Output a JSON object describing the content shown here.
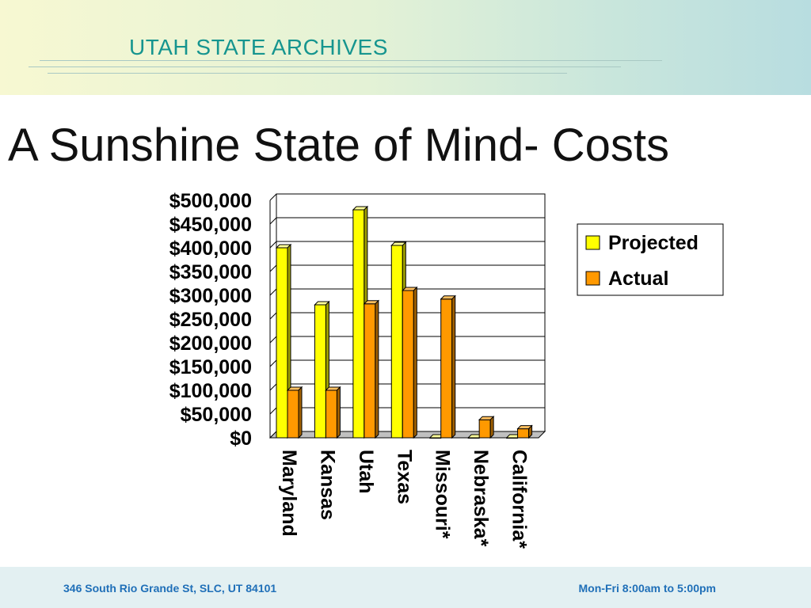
{
  "header": {
    "title": "UTAH STATE ARCHIVES"
  },
  "slide": {
    "title": "A Sunshine State of Mind- Costs"
  },
  "footer": {
    "address": "346 South Rio Grande St, SLC, UT 84101",
    "hours": "Mon-Fri 8:00am to 5:00pm"
  },
  "colors": {
    "projected": "#ffff00",
    "actual": "#ff9900",
    "header_text": "#16958f",
    "footer_text": "#1f6fb8"
  },
  "chart_data": {
    "type": "bar",
    "categories": [
      "Maryland",
      "Kansas",
      "Utah",
      "Texas",
      "Missouri*",
      "Nebraska*",
      "California*"
    ],
    "series": [
      {
        "name": "Projected",
        "values": [
          400000,
          280000,
          480000,
          405000,
          0,
          0,
          0
        ]
      },
      {
        "name": "Actual",
        "values": [
          100000,
          100000,
          282000,
          310000,
          292000,
          38000,
          19000
        ]
      }
    ],
    "y_ticks": [
      "$0",
      "$50,000",
      "$100,000",
      "$150,000",
      "$200,000",
      "$250,000",
      "$300,000",
      "$350,000",
      "$400,000",
      "$450,000",
      "$500,000"
    ],
    "ylim": [
      0,
      500000
    ],
    "grid": true,
    "legend_position": "right"
  }
}
